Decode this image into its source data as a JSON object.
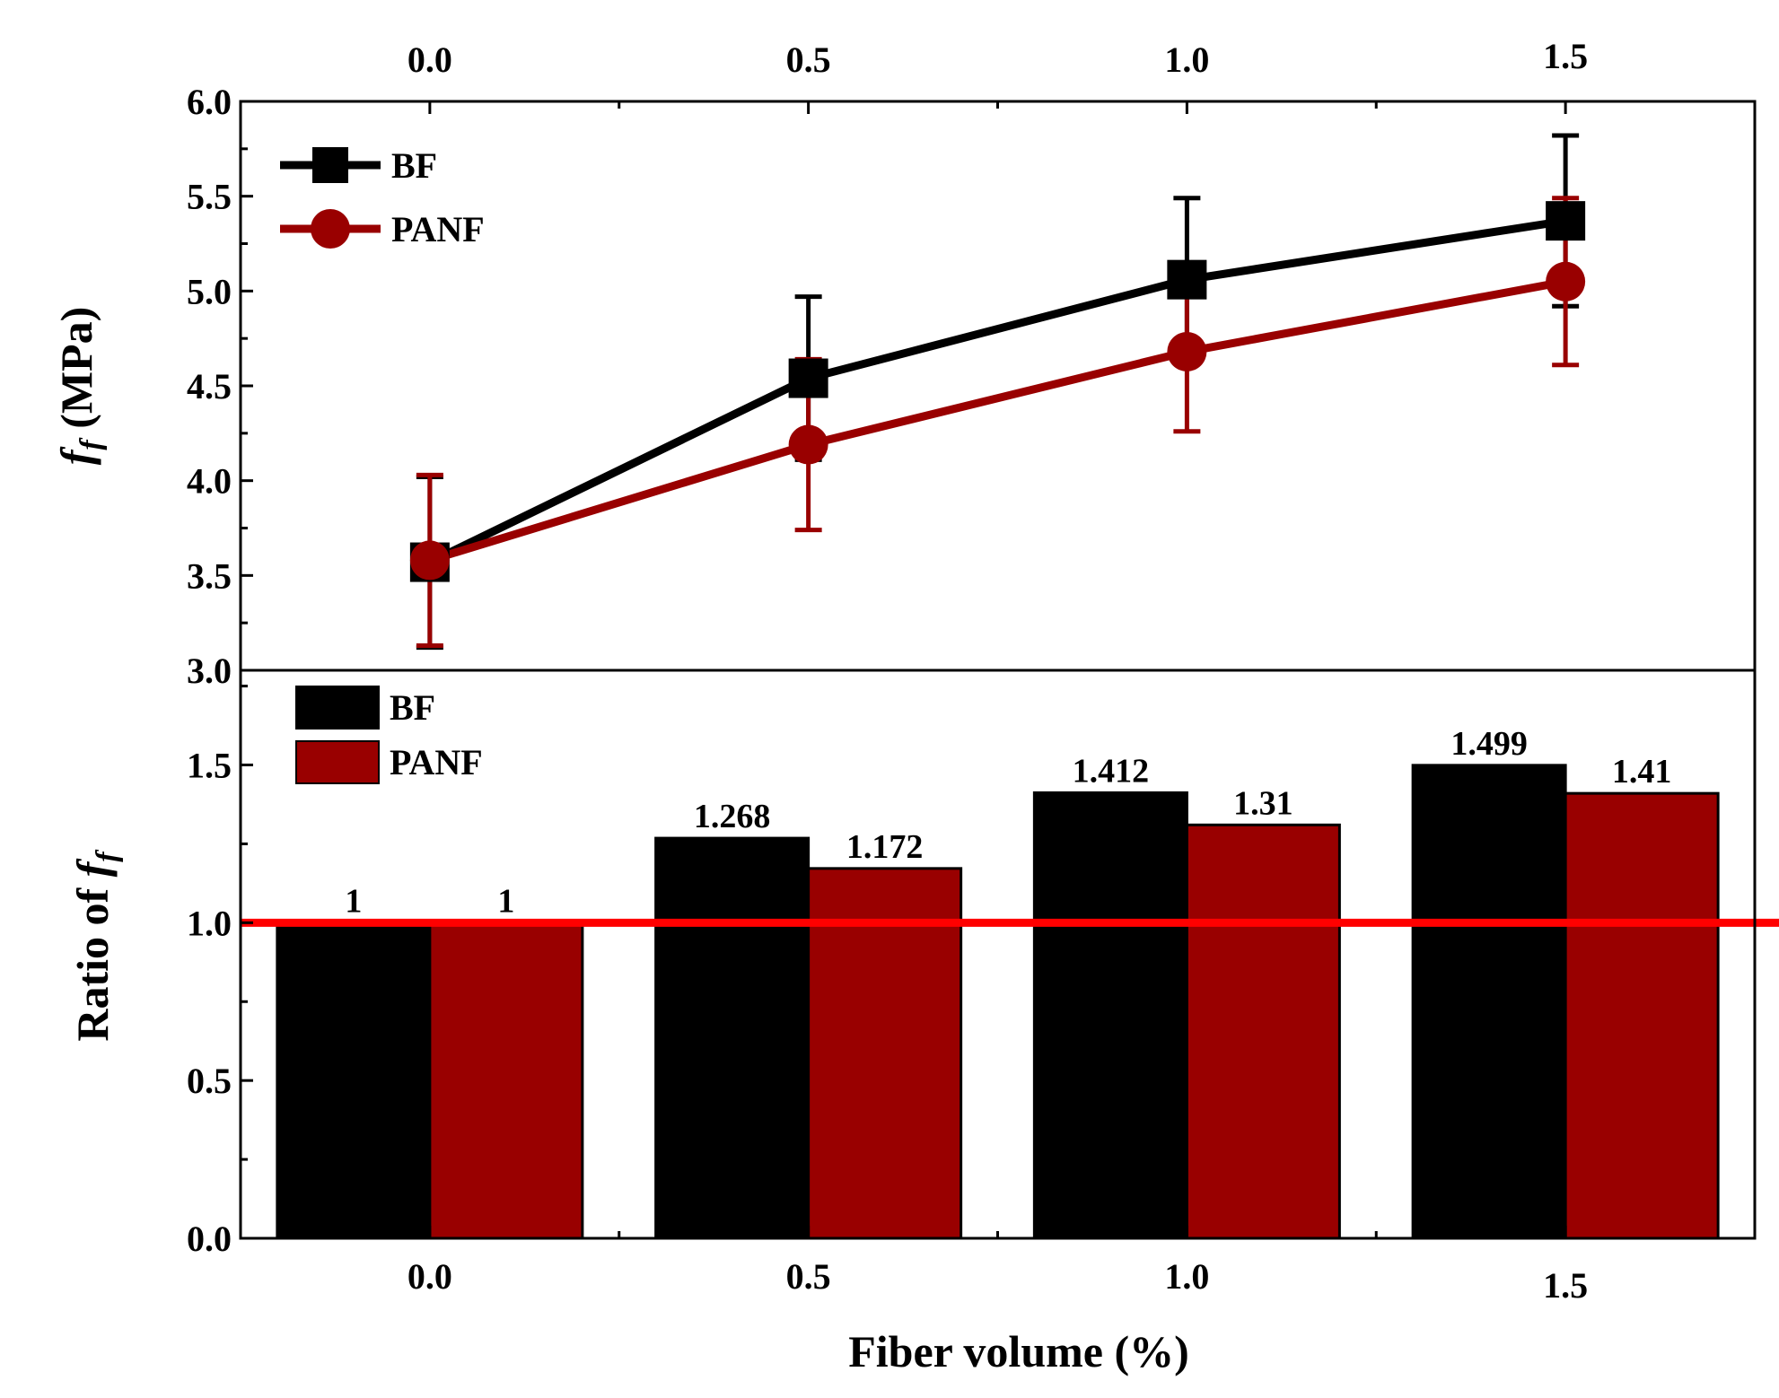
{
  "colors": {
    "bf": "#000000",
    "panf": "#990000",
    "reference_line": "#ff0000"
  },
  "chart_data": [
    {
      "type": "line",
      "name": "top-panel",
      "x": [
        0.0,
        0.5,
        1.0,
        1.5
      ],
      "x_tick_labels": [
        "0.0",
        "0.5",
        "1.0",
        "1.5"
      ],
      "xlim": [
        -0.25,
        1.75
      ],
      "ylim": [
        3.0,
        6.0
      ],
      "y_ticks": [
        "3.0",
        "3.5",
        "4.0",
        "4.5",
        "5.0",
        "5.5",
        "6.0"
      ],
      "ylabel_main": "f",
      "ylabel_sub": "f",
      "ylabel_unit": "(MPa)",
      "legend": [
        "BF",
        "PANF"
      ],
      "series": [
        {
          "name": "BF",
          "marker": "square",
          "values": [
            3.57,
            4.54,
            5.06,
            5.37
          ],
          "error": [
            0.45,
            0.43,
            0.43,
            0.45
          ]
        },
        {
          "name": "PANF",
          "marker": "circle",
          "values": [
            3.58,
            4.19,
            4.68,
            5.05
          ],
          "error": [
            0.45,
            0.45,
            0.42,
            0.44
          ]
        }
      ]
    },
    {
      "type": "bar",
      "name": "bottom-panel",
      "categories": [
        "0.0",
        "0.5",
        "1.0",
        "1.5"
      ],
      "x": [
        0.0,
        0.5,
        1.0,
        1.5
      ],
      "xlim": [
        -0.25,
        1.75
      ],
      "ylim": [
        0.0,
        1.8
      ],
      "y_ticks": [
        "0.0",
        "0.5",
        "1.0",
        "1.5"
      ],
      "ylabel_prefix": "Ratio of",
      "ylabel_main": "f",
      "ylabel_sub": "f",
      "xlabel": "Fiber volume (%)",
      "legend": [
        "BF",
        "PANF"
      ],
      "reference_line": 1.0,
      "series": [
        {
          "name": "BF",
          "values": [
            1,
            1.268,
            1.412,
            1.499
          ],
          "labels": [
            "1",
            "1.268",
            "1.412",
            "1.499"
          ]
        },
        {
          "name": "PANF",
          "values": [
            1,
            1.172,
            1.31,
            1.41
          ],
          "labels": [
            "1",
            "1.172",
            "1.31",
            "1.41"
          ]
        }
      ]
    }
  ]
}
